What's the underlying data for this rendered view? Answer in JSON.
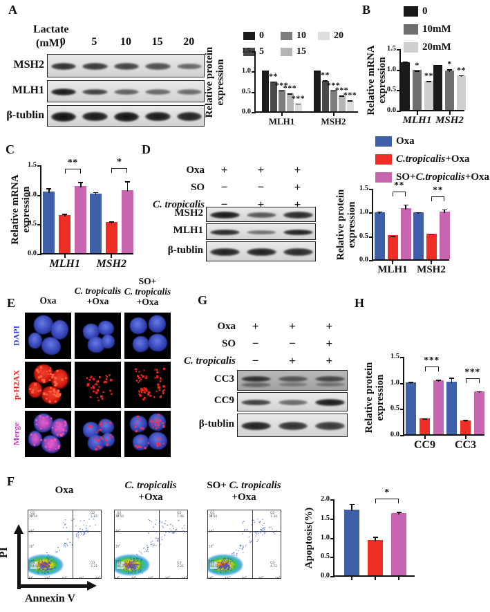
{
  "colors": {
    "blue": "#3f5fa8",
    "red": "#ee2e24",
    "magenta": "#c765ae",
    "black": "#1a1a1a"
  },
  "panels": {
    "A": {
      "label": "A",
      "factor_line1": "Lactate",
      "factor_line2": "(mM)",
      "doses": [
        "0",
        "5",
        "10",
        "15",
        "20"
      ],
      "blot_rows": [
        {
          "name": "MSH2",
          "lanes": [
            0.8,
            0.75,
            0.68,
            0.6,
            0.45
          ],
          "band_h": 11
        },
        {
          "name": "MLH1",
          "lanes": [
            0.95,
            0.7,
            0.5,
            0.45,
            0.42
          ],
          "band_h": 10
        },
        {
          "name": "β-tublin",
          "lanes": [
            1,
            0.95,
            1,
            0.95,
            0.9
          ],
          "band_h": 14
        }
      ]
    },
    "B": {
      "label": "B",
      "legend": [
        {
          "rich": [
            [
              "r",
              "0"
            ]
          ],
          "color": "#1a1a1a"
        },
        {
          "rich": [
            [
              "r",
              "10mM"
            ]
          ],
          "color": "#6f6f6f"
        },
        {
          "rich": [
            [
              "r",
              "20mM"
            ]
          ],
          "color": "#cfcfcf"
        }
      ]
    },
    "C": {
      "label": "C"
    },
    "D": {
      "label": "D",
      "conditions": [
        {
          "label": [
            [
              "r",
              "Oxa"
            ]
          ],
          "values": [
            "+",
            "+",
            "+"
          ]
        },
        {
          "label": [
            [
              "r",
              "SO"
            ]
          ],
          "values": [
            "−",
            "−",
            "+"
          ]
        },
        {
          "label": [
            [
              "i",
              "C. tropicalis"
            ]
          ],
          "values": [
            "−",
            "+",
            "+"
          ]
        }
      ],
      "blot_rows": [
        {
          "name": "MSH2",
          "lanes": [
            0.95,
            0.55,
            0.85
          ],
          "band_h": 10
        },
        {
          "name": "MLH1",
          "lanes": [
            0.85,
            0.4,
            0.9
          ],
          "band_h": 9
        },
        {
          "name": "β-tublin",
          "lanes": [
            0.9,
            0.9,
            0.85
          ],
          "band_h": 12
        }
      ],
      "legend": [
        {
          "rich": [
            [
              "r",
              "Oxa"
            ]
          ],
          "color": "#3f5fa8"
        },
        {
          "rich": [
            [
              "i",
              "C.tropicalis"
            ],
            [
              "r",
              "+Oxa"
            ]
          ],
          "color": "#ee2e24"
        },
        {
          "rich": [
            [
              "r",
              "SO+"
            ],
            [
              "i",
              "C.tropicalis"
            ],
            [
              "r",
              "+Oxa"
            ]
          ],
          "color": "#c765ae"
        }
      ]
    },
    "E": {
      "label": "E",
      "col_headers": [
        [
          [
            [
              "r",
              "Oxa"
            ]
          ]
        ],
        [
          [
            [
              "i",
              "C. tropicalis"
            ]
          ],
          [
            [
              "r",
              "+Oxa"
            ]
          ]
        ],
        [
          [
            [
              "r",
              "SO+"
            ]
          ],
          [
            [
              "i",
              "C. tropicalis"
            ]
          ],
          [
            [
              "r",
              "+Oxa"
            ]
          ]
        ]
      ],
      "row_labels": [
        {
          "text": "DAPI",
          "color": "#3a46c8"
        },
        {
          "text": "p-H2AX",
          "color": "#e02020"
        },
        {
          "text": "Merge",
          "color": "#c23ab8"
        }
      ]
    },
    "F": {
      "label": "F",
      "col_headers": [
        [
          [
            [
              "r",
              "Oxa"
            ]
          ]
        ],
        [
          [
            [
              "i",
              "C. tropicalis"
            ]
          ],
          [
            [
              "r",
              "+Oxa"
            ]
          ]
        ],
        [
          [
            [
              "r",
              "SO+ "
            ],
            [
              "i",
              "C. tropicalis"
            ]
          ],
          [
            [
              "r",
              "+Oxa"
            ]
          ]
        ]
      ],
      "x_axis": "Annexin V",
      "y_axis": "PI",
      "tick_exponents": [
        0,
        1,
        2,
        3,
        4
      ],
      "plots": [
        {
          "quadrants": [
            {
              "name": "Q1",
              "value": "0.54"
            },
            {
              "name": "Q2",
              "value": "1.85"
            },
            {
              "name": "Q3",
              "value": "3.21"
            },
            {
              "name": "Q4",
              "value": "94.6"
            }
          ]
        },
        {
          "quadrants": [
            {
              "name": "Q1",
              "value": "0.50"
            },
            {
              "name": "Q2",
              "value": "1.08"
            },
            {
              "name": "Q3",
              "value": "2.21"
            },
            {
              "name": "Q4",
              "value": "96.2"
            }
          ]
        },
        {
          "quadrants": [
            {
              "name": "Q1",
              "value": "0.44"
            },
            {
              "name": "Q2",
              "value": "1.34"
            },
            {
              "name": "Q3",
              "value": "4.72"
            },
            {
              "name": "Q4",
              "value": "93.5"
            }
          ]
        }
      ]
    },
    "G": {
      "label": "G",
      "conditions": [
        {
          "label": [
            [
              "r",
              "Oxa"
            ]
          ],
          "values": [
            "+",
            "+",
            "+"
          ]
        },
        {
          "label": [
            [
              "r",
              "SO"
            ]
          ],
          "values": [
            "−",
            "−",
            "+"
          ]
        },
        {
          "label": [
            [
              "i",
              "C. tropicalis"
            ]
          ],
          "values": [
            "−",
            "+",
            "+"
          ]
        }
      ],
      "blot_rows": [
        {
          "name": "CC3",
          "lanes": [
            0.8,
            0.5,
            0.62
          ],
          "band_h": 9,
          "dark": true,
          "double": true
        },
        {
          "name": "CC9",
          "lanes": [
            0.7,
            0.42,
            0.95
          ],
          "band_h": 10
        },
        {
          "name": "β-tublin",
          "lanes": [
            0.9,
            0.8,
            0.75
          ],
          "band_h": 13
        }
      ]
    },
    "H": {
      "label": "H"
    }
  },
  "chart_data": [
    {
      "id": "A_protein",
      "type": "bar",
      "ylabel_lines": [
        "Relative protein",
        "expression"
      ],
      "ylim": [
        0,
        1.5
      ],
      "yticks": [
        0,
        0.5,
        1,
        1.5
      ],
      "categories": [
        "MLH1",
        "MSH2"
      ],
      "italic_categories": false,
      "series": [
        {
          "name": "0",
          "color": "#1a1a1a",
          "values": [
            1.0,
            1.0
          ],
          "errors": [
            0.03,
            0.02
          ],
          "sig": [
            "",
            ""
          ]
        },
        {
          "name": "5",
          "color": "#4a4a4a",
          "values": [
            0.74,
            0.75
          ],
          "errors": [
            0.03,
            0.05
          ],
          "sig": [
            "**",
            "**"
          ]
        },
        {
          "name": "10",
          "color": "#7d7d7d",
          "values": [
            0.53,
            0.53
          ],
          "errors": [
            0.02,
            0.02
          ],
          "sig": [
            "***",
            "***"
          ]
        },
        {
          "name": "15",
          "color": "#b5b5b5",
          "values": [
            0.44,
            0.4
          ],
          "errors": [
            0.03,
            0.02
          ],
          "sig": [
            "***",
            "***"
          ]
        },
        {
          "name": "20",
          "color": "#dedede",
          "values": [
            0.21,
            0.28
          ],
          "errors": [
            0.02,
            0.02
          ],
          "sig": [
            "***",
            "***"
          ]
        }
      ]
    },
    {
      "id": "B_mrna",
      "type": "bar",
      "ylabel_lines": [
        "Relative mRNA",
        "expression"
      ],
      "ylim": [
        0,
        1.5
      ],
      "yticks": [
        0,
        0.5,
        1,
        1.5
      ],
      "categories": [
        "MLH1",
        "MSH2"
      ],
      "italic_categories": true,
      "series": [
        {
          "name": "0",
          "color": "#1a1a1a",
          "values": [
            1.16,
            1.09
          ],
          "errors": [
            0.05,
            0.04
          ],
          "sig": [
            "",
            ""
          ]
        },
        {
          "name": "10mM",
          "color": "#6f6f6f",
          "values": [
            0.97,
            0.96
          ],
          "errors": [
            0.02,
            0.06
          ],
          "sig": [
            "*",
            "*"
          ]
        },
        {
          "name": "20mM",
          "color": "#cfcfcf",
          "values": [
            0.7,
            0.85
          ],
          "errors": [
            0.04,
            0.03
          ],
          "sig": [
            "**",
            "**"
          ]
        }
      ]
    },
    {
      "id": "C_mrna",
      "type": "bar",
      "ylabel_lines": [
        "Relative mRNA",
        "expression"
      ],
      "ylim": [
        0,
        1.5
      ],
      "yticks": [
        0,
        0.5,
        1,
        1.5
      ],
      "categories": [
        "MLH1",
        "MSH2"
      ],
      "italic_categories": true,
      "series": [
        {
          "name": "Oxa",
          "color": "#3f5fa8",
          "values": [
            1.04,
            1.01
          ],
          "errors": [
            0.08,
            0.05
          ],
          "sig": [
            "",
            ""
          ]
        },
        {
          "name": "C.tropicalis+Oxa",
          "color": "#ee2e24",
          "values": [
            0.64,
            0.53
          ],
          "errors": [
            0.05,
            0.03
          ],
          "sig": [
            "",
            ""
          ]
        },
        {
          "name": "SO+C.tropicalis+Oxa",
          "color": "#c765ae",
          "values": [
            1.14,
            1.07
          ],
          "errors": [
            0.09,
            0.17
          ],
          "sig": [
            "",
            ""
          ]
        }
      ],
      "brackets": [
        {
          "cat": 0,
          "from": 1,
          "to": 2,
          "label": "**"
        },
        {
          "cat": 1,
          "from": 1,
          "to": 2,
          "label": "*"
        }
      ]
    },
    {
      "id": "D_protein",
      "type": "bar",
      "ylabel_lines": [
        "Relative protein",
        "expression"
      ],
      "ylim": [
        0,
        1.5
      ],
      "yticks": [
        0,
        0.5,
        1,
        1.5
      ],
      "categories": [
        "MLH1",
        "MSH2"
      ],
      "italic_categories": false,
      "series": [
        {
          "name": "Oxa",
          "color": "#3f5fa8",
          "values": [
            0.99,
            0.99
          ],
          "errors": [
            0.05,
            0.03
          ],
          "sig": [
            "",
            ""
          ]
        },
        {
          "name": "C.tropicalis+Oxa",
          "color": "#ee2e24",
          "values": [
            0.51,
            0.54
          ],
          "errors": [
            0.01,
            0.02
          ],
          "sig": [
            "",
            ""
          ]
        },
        {
          "name": "SO+C.tropicalis+Oxa",
          "color": "#c765ae",
          "values": [
            1.08,
            1.0
          ],
          "errors": [
            0.1,
            0.08
          ],
          "sig": [
            "",
            ""
          ]
        }
      ],
      "brackets": [
        {
          "cat": 0,
          "from": 1,
          "to": 2,
          "label": "**"
        },
        {
          "cat": 1,
          "from": 1,
          "to": 2,
          "label": "**"
        }
      ]
    },
    {
      "id": "H_protein",
      "type": "bar",
      "ylabel_lines": [
        "Relative protein",
        "expression"
      ],
      "ylim": [
        0,
        1.5
      ],
      "yticks": [
        0,
        0.5,
        1,
        1.5
      ],
      "categories": [
        "CC9",
        "CC3"
      ],
      "italic_categories": false,
      "series": [
        {
          "name": "Oxa",
          "color": "#3f5fa8",
          "values": [
            0.99,
            1.01
          ],
          "errors": [
            0.04,
            0.1
          ],
          "sig": [
            "",
            ""
          ]
        },
        {
          "name": "C.tropicalis+Oxa",
          "color": "#ee2e24",
          "values": [
            0.3,
            0.26
          ],
          "errors": [
            0.03,
            0.04
          ],
          "sig": [
            "",
            ""
          ]
        },
        {
          "name": "SO+C.tropicalis+Oxa",
          "color": "#c765ae",
          "values": [
            1.03,
            0.82
          ],
          "errors": [
            0.04,
            0.03
          ],
          "sig": [
            "",
            ""
          ]
        }
      ],
      "brackets": [
        {
          "cat": 0,
          "from": 1,
          "to": 2,
          "label": "***"
        },
        {
          "cat": 1,
          "from": 1,
          "to": 2,
          "label": "***"
        }
      ]
    },
    {
      "id": "F_apoptosis",
      "type": "bar",
      "ylabel_lines": [
        "Apoptosis(%)"
      ],
      "ylim": [
        0,
        2
      ],
      "yticks": [
        0,
        0.5,
        1,
        1.5,
        2
      ],
      "categories": [
        ""
      ],
      "italic_categories": false,
      "ticks_per_bar": true,
      "series": [
        {
          "name": "Oxa",
          "color": "#3f5fa8",
          "values": [
            1.72
          ],
          "errors": [
            0.18
          ],
          "sig": [
            ""
          ]
        },
        {
          "name": "C.tropicalis+Oxa",
          "color": "#ee2e24",
          "values": [
            0.92
          ],
          "errors": [
            0.12
          ],
          "sig": [
            ""
          ]
        },
        {
          "name": "SO+C.tropicalis+Oxa",
          "color": "#c765ae",
          "values": [
            1.63
          ],
          "errors": [
            0.06
          ],
          "sig": [
            ""
          ]
        }
      ],
      "brackets": [
        {
          "cat": 0,
          "from": 1,
          "to": 2,
          "label": "*"
        }
      ]
    }
  ]
}
